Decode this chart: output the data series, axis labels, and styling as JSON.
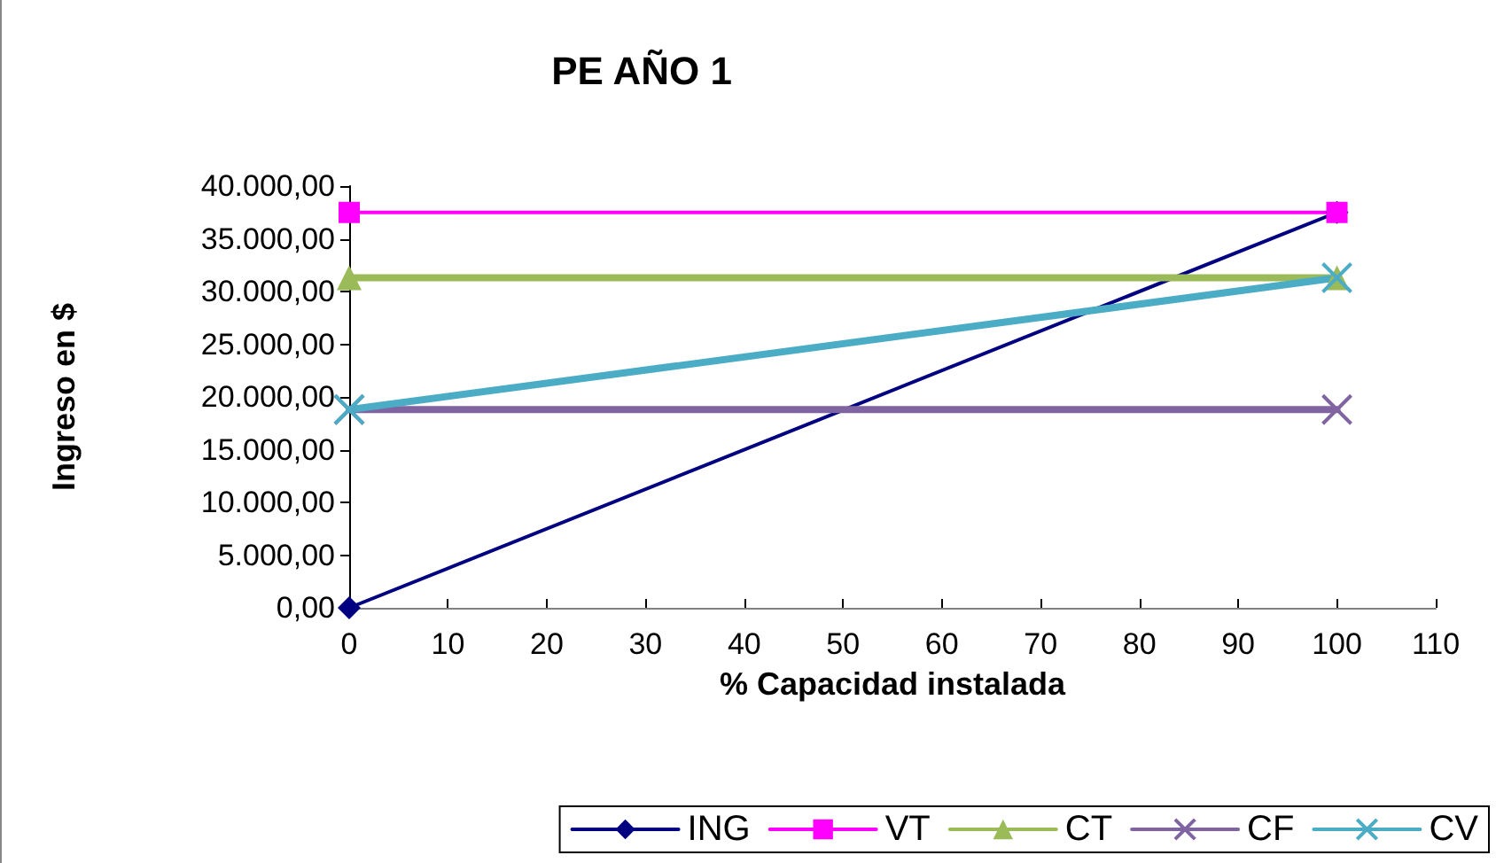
{
  "chart_data": {
    "type": "line",
    "title": "PE AÑO 1",
    "xlabel": "% Capacidad instalada",
    "ylabel": "Ingreso en $",
    "x": [
      0,
      100
    ],
    "series": [
      {
        "name": "ING",
        "color": "#000080",
        "marker": "diamond",
        "values": [
          0,
          37500
        ]
      },
      {
        "name": "VT",
        "color": "#ff00ff",
        "marker": "square",
        "values": [
          37500,
          37500
        ]
      },
      {
        "name": "CT",
        "color": "#9bbb59",
        "marker": "triangle",
        "values": [
          31300,
          31300
        ]
      },
      {
        "name": "CF",
        "color": "#8064a2",
        "marker": "cross",
        "values": [
          18800,
          18800
        ]
      },
      {
        "name": "CV",
        "color": "#4bacc6",
        "marker": "cross",
        "values": [
          18800,
          31300
        ]
      }
    ],
    "xlim": [
      0,
      110
    ],
    "xticks": [
      0,
      10,
      20,
      30,
      40,
      50,
      60,
      70,
      80,
      90,
      100,
      110
    ],
    "ylim": [
      0,
      40000
    ],
    "yticks": [
      {
        "value": 0,
        "label": "0,00"
      },
      {
        "value": 5000,
        "label": "5.000,00"
      },
      {
        "value": 10000,
        "label": "10.000,00"
      },
      {
        "value": 15000,
        "label": "15.000,00"
      },
      {
        "value": 20000,
        "label": "20.000,00"
      },
      {
        "value": 25000,
        "label": "25.000,00"
      },
      {
        "value": 30000,
        "label": "30.000,00"
      },
      {
        "value": 35000,
        "label": "35.000,00"
      },
      {
        "value": 40000,
        "label": "40.000,00"
      }
    ],
    "grid": false,
    "legend": "bottom right",
    "line_style": "solid"
  }
}
